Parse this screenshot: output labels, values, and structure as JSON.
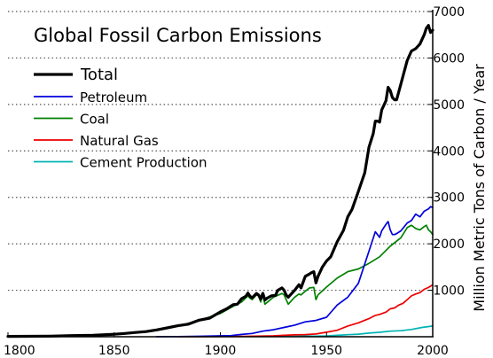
{
  "chart_data": {
    "type": "line",
    "title": "Global Fossil Carbon Emissions",
    "xlabel": "",
    "ylabel": "Million Metric Tons of Carbon / Year",
    "xlim": [
      1800,
      2000
    ],
    "ylim": [
      0,
      7000
    ],
    "x_ticks": [
      1800,
      1850,
      1900,
      1950,
      2000
    ],
    "y_ticks": [
      1000,
      2000,
      3000,
      4000,
      5000,
      6000,
      7000
    ],
    "grid": "dotted horizontal",
    "legend_position": "top-left",
    "series": [
      {
        "name": "Total",
        "color": "#000000",
        "x": [
          1800,
          1810,
          1820,
          1830,
          1840,
          1850,
          1855,
          1860,
          1865,
          1870,
          1875,
          1880,
          1885,
          1890,
          1895,
          1900,
          1903,
          1906,
          1908,
          1910,
          1912,
          1913,
          1914,
          1915,
          1917,
          1918,
          1919,
          1920,
          1921,
          1922,
          1924,
          1926,
          1927,
          1929,
          1930,
          1931,
          1932,
          1933,
          1935,
          1937,
          1938,
          1940,
          1942,
          1943,
          1944,
          1945,
          1946,
          1948,
          1950,
          1952,
          1955,
          1958,
          1960,
          1962,
          1965,
          1968,
          1970,
          1972,
          1973,
          1974,
          1975,
          1976,
          1978,
          1979,
          1980,
          1981,
          1982,
          1983,
          1985,
          1988,
          1990,
          1992,
          1994,
          1996,
          1997,
          1998,
          1999,
          2000
        ],
        "values": [
          8,
          10,
          14,
          24,
          33,
          54,
          70,
          91,
          110,
          147,
          190,
          236,
          270,
          357,
          400,
          534,
          600,
          690,
          700,
          820,
          870,
          940,
          870,
          840,
          930,
          900,
          810,
          935,
          790,
          830,
          880,
          890,
          1000,
          1050,
          1000,
          900,
          850,
          900,
          1000,
          1120,
          1050,
          1300,
          1350,
          1380,
          1400,
          1160,
          1300,
          1500,
          1630,
          1720,
          2040,
          2290,
          2580,
          2740,
          3130,
          3530,
          4080,
          4370,
          4640,
          4640,
          4620,
          4880,
          5080,
          5370,
          5300,
          5150,
          5100,
          5100,
          5440,
          5950,
          6150,
          6200,
          6300,
          6500,
          6640,
          6700,
          6550,
          6600
        ]
      },
      {
        "name": "Petroleum",
        "color": "#0000dd",
        "x": [
          1870,
          1880,
          1890,
          1900,
          1905,
          1910,
          1915,
          1920,
          1925,
          1930,
          1935,
          1940,
          1945,
          1950,
          1955,
          1960,
          1965,
          1970,
          1973,
          1975,
          1976,
          1978,
          1979,
          1980,
          1981,
          1982,
          1983,
          1985,
          1988,
          1990,
          1992,
          1994,
          1996,
          1998,
          1999,
          2000
        ],
        "values": [
          1,
          3,
          10,
          20,
          25,
          50,
          70,
          120,
          150,
          200,
          250,
          320,
          350,
          420,
          680,
          850,
          1150,
          1840,
          2260,
          2140,
          2280,
          2420,
          2480,
          2300,
          2200,
          2200,
          2220,
          2280,
          2450,
          2500,
          2640,
          2580,
          2700,
          2750,
          2800,
          2780
        ]
      },
      {
        "name": "Coal",
        "color": "#008000",
        "x": [
          1800,
          1810,
          1820,
          1830,
          1840,
          1850,
          1860,
          1870,
          1880,
          1890,
          1900,
          1905,
          1910,
          1913,
          1914,
          1915,
          1917,
          1918,
          1919,
          1920,
          1921,
          1925,
          1929,
          1930,
          1932,
          1935,
          1937,
          1938,
          1940,
          1942,
          1944,
          1945,
          1946,
          1950,
          1955,
          1960,
          1965,
          1970,
          1975,
          1980,
          1985,
          1988,
          1990,
          1992,
          1994,
          1996,
          1997,
          1998,
          1999,
          2000
        ],
        "values": [
          8,
          10,
          14,
          24,
          33,
          54,
          90,
          140,
          230,
          350,
          500,
          630,
          750,
          880,
          830,
          800,
          900,
          880,
          750,
          900,
          700,
          850,
          930,
          900,
          700,
          850,
          920,
          900,
          980,
          1050,
          1060,
          800,
          900,
          1070,
          1260,
          1400,
          1460,
          1580,
          1720,
          1950,
          2130,
          2350,
          2400,
          2330,
          2300,
          2370,
          2400,
          2300,
          2260,
          2200
        ]
      },
      {
        "name": "Natural Gas",
        "color": "#ee0000",
        "x": [
          1880,
          1890,
          1900,
          1910,
          1920,
          1925,
          1930,
          1935,
          1940,
          1945,
          1950,
          1955,
          1960,
          1965,
          1970,
          1973,
          1975,
          1978,
          1980,
          1982,
          1984,
          1986,
          1988,
          1990,
          1992,
          1994,
          1996,
          1998,
          1999,
          2000
        ],
        "values": [
          1,
          2,
          4,
          8,
          15,
          20,
          30,
          40,
          45,
          60,
          97,
          140,
          230,
          300,
          390,
          460,
          480,
          530,
          600,
          620,
          680,
          720,
          800,
          880,
          920,
          950,
          1020,
          1060,
          1090,
          1120
        ]
      },
      {
        "name": "Cement Production",
        "color": "#00b3b3",
        "x": [
          1925,
          1930,
          1935,
          1940,
          1945,
          1950,
          1955,
          1960,
          1965,
          1970,
          1975,
          1980,
          1985,
          1990,
          1995,
          2000
        ],
        "values": [
          5,
          8,
          10,
          14,
          11,
          18,
          30,
          43,
          56,
          78,
          95,
          120,
          130,
          157,
          200,
          230
        ]
      }
    ]
  }
}
